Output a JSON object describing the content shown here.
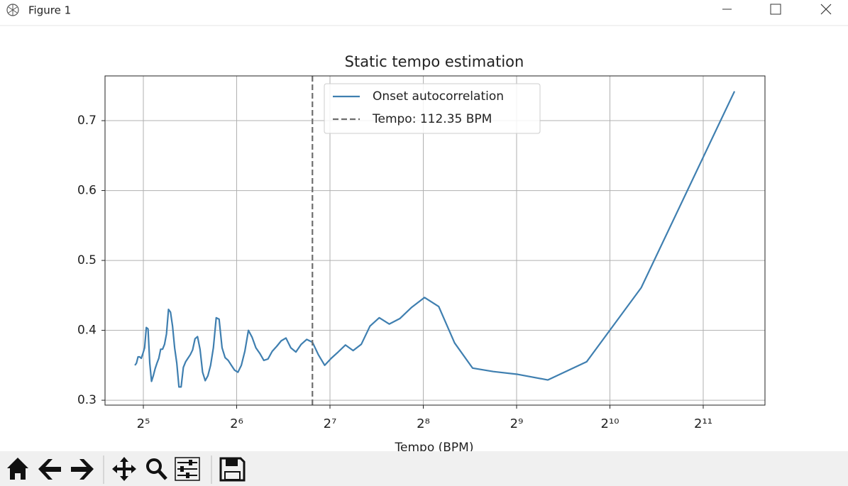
{
  "window": {
    "title": "Figure 1"
  },
  "chart_data": {
    "type": "line",
    "title": "Static tempo estimation",
    "xlabel": "Tempo (BPM)",
    "xscale": "log",
    "grid": true,
    "legend": "upper center",
    "xlim": [
      24.07,
      3240
    ],
    "ylim": [
      0.293,
      0.764
    ],
    "xticks": [
      {
        "value": 32,
        "label": "2⁵"
      },
      {
        "value": 64,
        "label": "2⁶"
      },
      {
        "value": 128,
        "label": "2⁷"
      },
      {
        "value": 256,
        "label": "2⁸"
      },
      {
        "value": 512,
        "label": "2⁹"
      },
      {
        "value": 1024,
        "label": "2¹⁰"
      },
      {
        "value": 2048,
        "label": "2¹¹"
      }
    ],
    "yticks": [
      0.3,
      0.4,
      0.5,
      0.6,
      0.7
    ],
    "x": [
      30.05,
      30.4,
      30.76,
      31.13,
      31.51,
      31.9,
      32.3,
      32.71,
      33.13,
      33.56,
      34.0,
      34.45,
      34.92,
      35.4,
      35.89,
      36.39,
      36.91,
      37.45,
      38.0,
      38.57,
      39.15,
      39.75,
      40.37,
      41.02,
      41.68,
      42.36,
      43.07,
      43.8,
      44.55,
      45.33,
      46.14,
      46.98,
      47.85,
      48.75,
      49.69,
      50.67,
      51.68,
      52.73,
      53.83,
      54.98,
      56.17,
      57.42,
      58.73,
      60.09,
      61.52,
      63.02,
      64.6,
      66.26,
      68.0,
      69.84,
      71.78,
      73.83,
      76.0,
      78.3,
      80.75,
      83.35,
      86.13,
      89.1,
      92.29,
      95.7,
      99.38,
      103.36,
      107.67,
      112.35,
      117.45,
      123.05,
      129.2,
      136.0,
      143.55,
      152.0,
      161.5,
      172.27,
      184.57,
      198.77,
      215.33,
      234.91,
      258.4,
      287.11,
      323.0,
      369.14,
      430.66,
      516.8,
      645.99,
      861.33,
      1291.99,
      2583.98
    ],
    "series": [
      {
        "name": "Onset autocorrelation",
        "color": "#3f7fb0",
        "values": [
          0.35,
          0.353,
          0.362,
          0.362,
          0.36,
          0.367,
          0.375,
          0.404,
          0.402,
          0.353,
          0.327,
          0.335,
          0.345,
          0.353,
          0.36,
          0.373,
          0.373,
          0.38,
          0.395,
          0.43,
          0.426,
          0.406,
          0.375,
          0.353,
          0.319,
          0.319,
          0.347,
          0.355,
          0.36,
          0.365,
          0.372,
          0.388,
          0.391,
          0.373,
          0.34,
          0.328,
          0.335,
          0.35,
          0.375,
          0.418,
          0.416,
          0.375,
          0.361,
          0.357,
          0.35,
          0.343,
          0.34,
          0.35,
          0.37,
          0.4,
          0.39,
          0.375,
          0.367,
          0.357,
          0.359,
          0.37,
          0.377,
          0.385,
          0.389,
          0.375,
          0.369,
          0.38,
          0.387,
          0.383,
          0.365,
          0.35,
          0.36,
          0.369,
          0.379,
          0.371,
          0.38,
          0.406,
          0.418,
          0.409,
          0.417,
          0.433,
          0.447,
          0.434,
          0.382,
          0.346,
          0.341,
          0.337,
          0.329,
          0.355,
          0.461,
          0.742
        ]
      }
    ],
    "tempo": 112.35,
    "tempo_label": "Tempo: 112.35 BPM",
    "tempo_color": "#6e6e6e"
  }
}
